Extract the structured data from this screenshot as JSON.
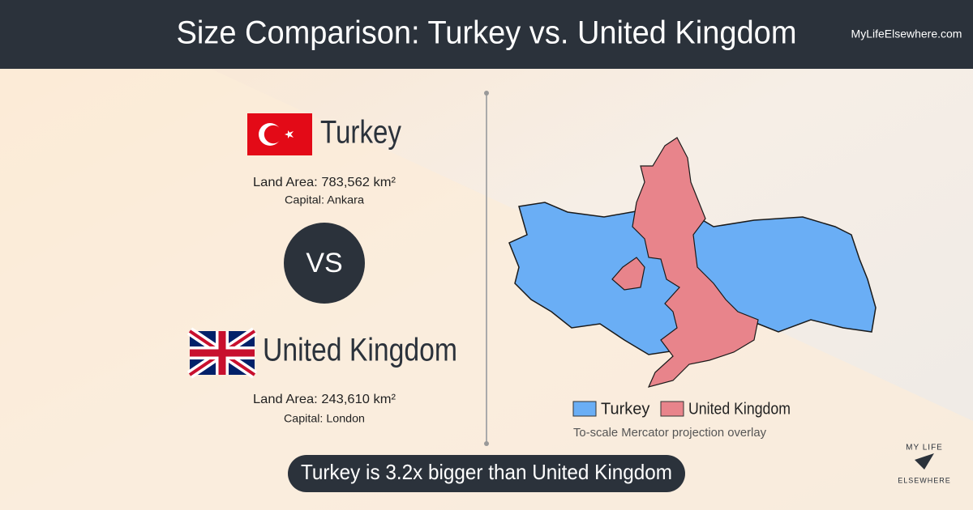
{
  "header": {
    "title": "Size Comparison: Turkey vs. United Kingdom",
    "site": "MyLifeElsewhere.com"
  },
  "countries": [
    {
      "name": "Turkey",
      "land_area": "Land Area: 783,562 km²",
      "capital": "Capital: Ankara"
    },
    {
      "name": "United Kingdom",
      "land_area": "Land Area: 243,610 km²",
      "capital": "Capital: London"
    }
  ],
  "vs": "VS",
  "legend": [
    "Turkey",
    "United Kingdom"
  ],
  "caption": "To-scale Mercator projection overlay",
  "summary": "Turkey is 3.2x bigger than United Kingdom",
  "logo": {
    "top": "MY LIFE",
    "bottom": "ELSEWHERE"
  }
}
